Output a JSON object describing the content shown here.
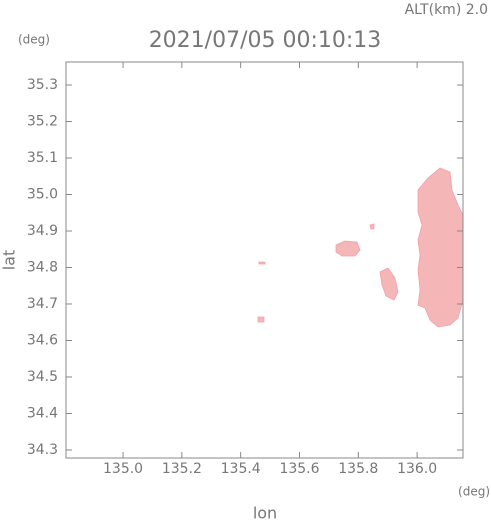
{
  "chart_data": {
    "type": "map",
    "title": "2021/07/05 00:10:13",
    "subtitle": "ALT(km) 2.0",
    "x_label": "lon",
    "y_label": "lat",
    "x_unit": "(deg)",
    "y_unit": "(deg)",
    "xlim": [
      134.806,
      136.156
    ],
    "ylim": [
      34.278,
      35.363
    ],
    "xticks": [
      {
        "value": 135.0,
        "label": "135.0"
      },
      135.2,
      135.4,
      135.6,
      135.8,
      {
        "value": 136.0,
        "label": "136.0"
      }
    ],
    "yticks": [
      34.3,
      34.4,
      34.5,
      34.6,
      34.7,
      34.8,
      34.9,
      {
        "value": 35.0,
        "label": "35.0"
      },
      35.1,
      35.2,
      35.3
    ]
  }
}
